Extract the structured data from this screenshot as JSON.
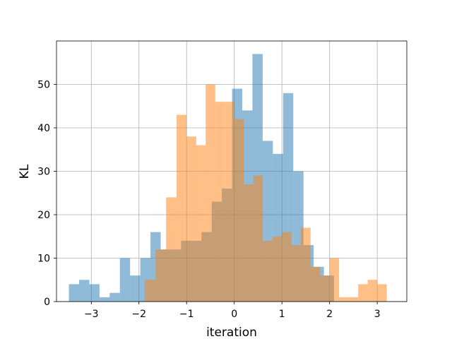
{
  "chart_data": {
    "type": "bar",
    "title": "",
    "xlabel": "iteration",
    "ylabel": "KL",
    "xlim": [
      -3.73,
      3.62
    ],
    "ylim": [
      0,
      60
    ],
    "grid": true,
    "xticks": [
      -3,
      -2,
      -1,
      0,
      1,
      2,
      3
    ],
    "xtick_labels": [
      "−3",
      "−2",
      "−1",
      "0",
      "1",
      "2",
      "3"
    ],
    "yticks": [
      0,
      10,
      20,
      30,
      40,
      50
    ],
    "ytick_labels": [
      "0",
      "10",
      "20",
      "30",
      "40",
      "50"
    ],
    "series": [
      {
        "color": "#1f77b4",
        "alpha": 0.5,
        "bins": [
          [
            -3.47,
            -3.256,
            4
          ],
          [
            -3.256,
            -3.042,
            5
          ],
          [
            -3.042,
            -2.828,
            4
          ],
          [
            -2.828,
            -2.614,
            1
          ],
          [
            -2.614,
            -2.4,
            2
          ],
          [
            -2.4,
            -2.186,
            10
          ],
          [
            -2.186,
            -1.972,
            6
          ],
          [
            -1.972,
            -1.758,
            10
          ],
          [
            -1.758,
            -1.544,
            16
          ],
          [
            -1.544,
            -1.33,
            12
          ],
          [
            -1.33,
            -1.116,
            12
          ],
          [
            -1.116,
            -0.902,
            14
          ],
          [
            -0.902,
            -0.688,
            14
          ],
          [
            -0.688,
            -0.474,
            16
          ],
          [
            -0.474,
            -0.26,
            23
          ],
          [
            -0.26,
            -0.046,
            26
          ],
          [
            -0.046,
            0.168,
            49
          ],
          [
            0.168,
            0.382,
            44
          ],
          [
            0.382,
            0.596,
            57
          ],
          [
            0.596,
            0.81,
            37
          ],
          [
            0.81,
            1.024,
            34
          ],
          [
            1.024,
            1.238,
            48
          ],
          [
            1.238,
            1.452,
            30
          ],
          [
            1.452,
            1.666,
            13
          ],
          [
            1.666,
            1.88,
            8
          ],
          [
            1.88,
            2.094,
            6
          ]
        ]
      },
      {
        "color": "#ff7f0e",
        "alpha": 0.5,
        "bins": [
          [
            -1.88,
            -1.65,
            5
          ],
          [
            -1.65,
            -1.43,
            12
          ],
          [
            -1.43,
            -1.21,
            24
          ],
          [
            -1.21,
            -1.0,
            43
          ],
          [
            -1.0,
            -0.8,
            38
          ],
          [
            -0.8,
            -0.6,
            36
          ],
          [
            -0.6,
            -0.4,
            50
          ],
          [
            -0.4,
            -0.2,
            46
          ],
          [
            -0.2,
            0.0,
            46
          ],
          [
            0.0,
            0.2,
            42
          ],
          [
            0.2,
            0.4,
            27
          ],
          [
            0.4,
            0.6,
            29
          ],
          [
            0.6,
            0.8,
            14
          ],
          [
            0.8,
            1.0,
            15
          ],
          [
            1.0,
            1.2,
            16
          ],
          [
            1.2,
            1.4,
            13
          ],
          [
            1.4,
            1.6,
            17
          ],
          [
            1.6,
            1.8,
            8
          ],
          [
            1.8,
            2.0,
            6
          ],
          [
            2.0,
            2.2,
            10
          ],
          [
            2.2,
            2.4,
            1
          ],
          [
            2.4,
            2.6,
            1
          ],
          [
            2.6,
            2.8,
            4
          ],
          [
            2.8,
            3.0,
            5
          ],
          [
            3.0,
            3.2,
            4
          ]
        ]
      }
    ]
  }
}
